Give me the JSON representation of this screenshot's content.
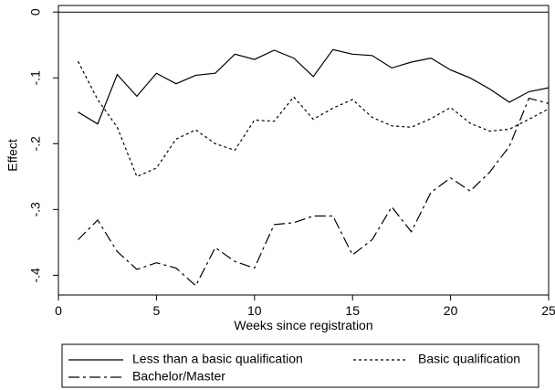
{
  "chart_data": {
    "type": "line",
    "title": "",
    "xlabel": "Weeks since registration",
    "ylabel": "Effect",
    "xlim": [
      0,
      25
    ],
    "ylim": [
      -0.43,
      0.01
    ],
    "x_ticks": [
      0,
      5,
      10,
      15,
      20,
      25
    ],
    "y_ticks": [
      0,
      -0.1,
      -0.2,
      -0.3,
      -0.4
    ],
    "x_tick_labels": [
      "0",
      "5",
      "10",
      "15",
      "20",
      "25"
    ],
    "y_tick_labels": [
      "0",
      "-.1",
      "-.2",
      "-.3",
      "-.4"
    ],
    "reference_line_y": 0,
    "grid": false,
    "legend_position": "bottom",
    "x": [
      1,
      2,
      3,
      4,
      5,
      6,
      7,
      8,
      9,
      10,
      11,
      12,
      13,
      14,
      15,
      16,
      17,
      18,
      19,
      20,
      21,
      22,
      23,
      24,
      25
    ],
    "series": [
      {
        "name": "Less than a basic qualification",
        "dash": "solid",
        "values": [
          -0.152,
          -0.17,
          -0.095,
          -0.128,
          -0.093,
          -0.109,
          -0.096,
          -0.093,
          -0.064,
          -0.072,
          -0.058,
          -0.07,
          -0.098,
          -0.057,
          -0.064,
          -0.066,
          -0.085,
          -0.076,
          -0.07,
          -0.088,
          -0.1,
          -0.117,
          -0.137,
          -0.121,
          -0.115
        ]
      },
      {
        "name": "Basic qualification",
        "dash": "short-dash",
        "values": [
          -0.075,
          -0.133,
          -0.175,
          -0.25,
          -0.237,
          -0.193,
          -0.179,
          -0.2,
          -0.21,
          -0.164,
          -0.166,
          -0.129,
          -0.163,
          -0.146,
          -0.133,
          -0.16,
          -0.173,
          -0.175,
          -0.162,
          -0.145,
          -0.169,
          -0.181,
          -0.178,
          -0.163,
          -0.147
        ]
      },
      {
        "name": "Bachelor/Master",
        "dash": "dash-dot",
        "values": [
          -0.346,
          -0.316,
          -0.364,
          -0.391,
          -0.381,
          -0.389,
          -0.416,
          -0.358,
          -0.379,
          -0.389,
          -0.323,
          -0.32,
          -0.31,
          -0.31,
          -0.369,
          -0.346,
          -0.296,
          -0.334,
          -0.274,
          -0.252,
          -0.272,
          -0.243,
          -0.204,
          -0.131,
          -0.139
        ]
      }
    ]
  }
}
